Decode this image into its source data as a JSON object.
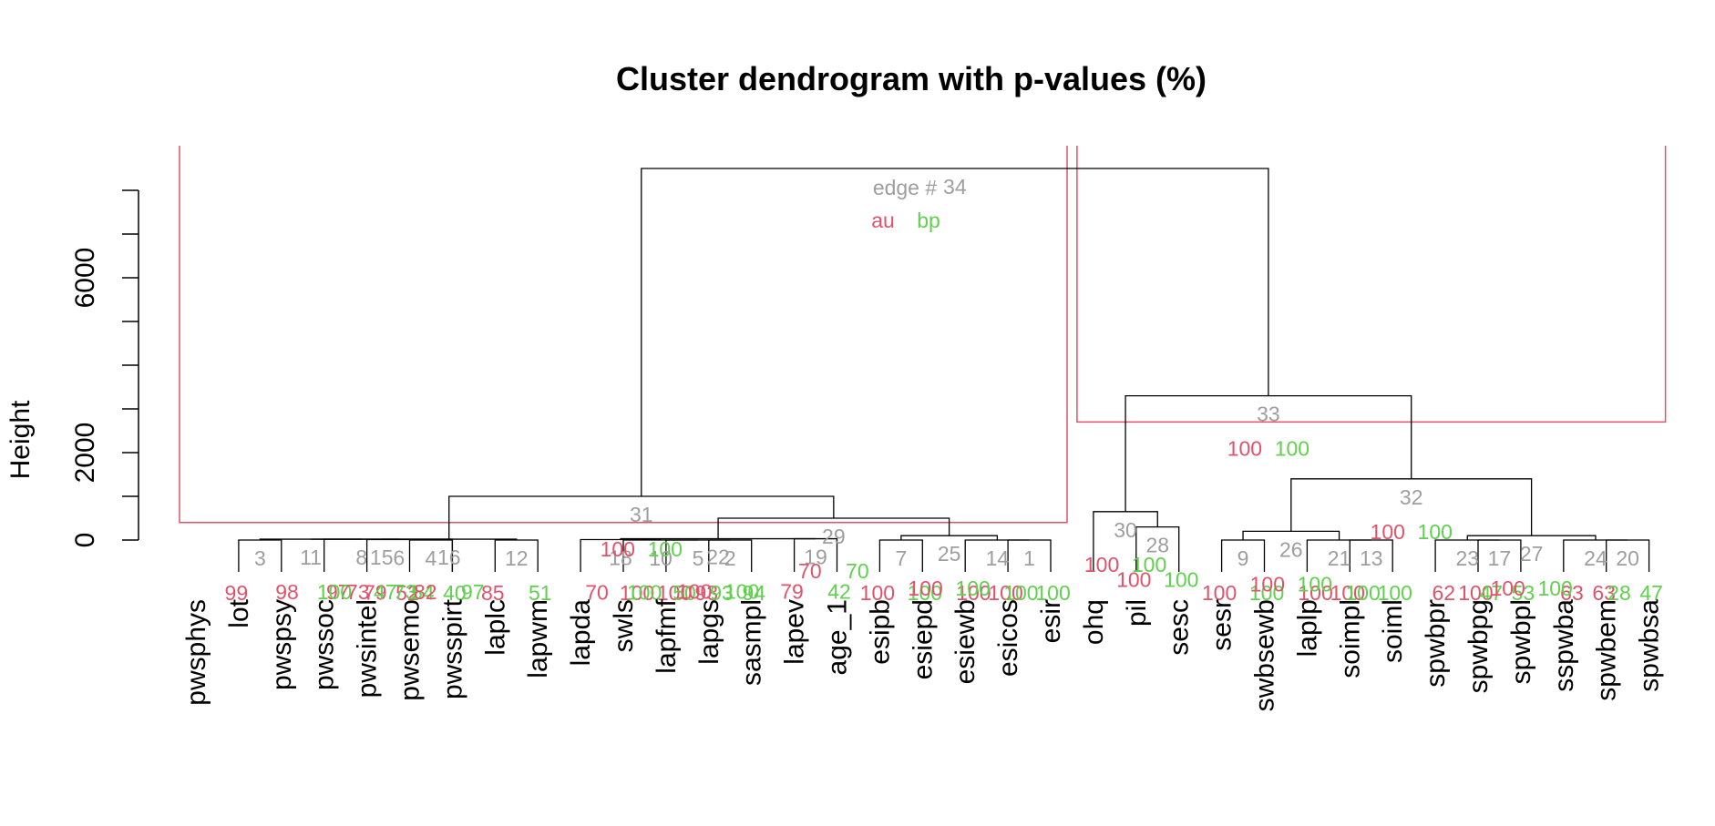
{
  "colors": {
    "branch": "#000000",
    "rect": "#df536b",
    "edge": "#9e9e9e",
    "au": "#df536b",
    "bp": "#61d04f"
  },
  "chart_data": {
    "type": "dendrogram",
    "title": "Cluster dendrogram with p-values (%)",
    "ylabel": "Height",
    "ylim": [
      0,
      8500
    ],
    "yticks": [
      0,
      1000,
      2000,
      3000,
      4000,
      5000,
      6000,
      7000,
      8000
    ],
    "ytick_labels": [
      "0",
      "",
      "2000",
      "",
      "",
      "",
      "6000",
      "",
      ""
    ],
    "legend": {
      "edge": "edge #",
      "au": "au",
      "bp": "bp",
      "position": "top-center"
    },
    "leaves": [
      "pwsphys",
      "lot",
      "pwspsy",
      "pwssoc",
      "pwsintel",
      "pwsemo",
      "pwsspirt",
      "laplc",
      "lapwm",
      "lapda",
      "swls",
      "lapfmf",
      "lapgs",
      "sasmpl",
      "lapev",
      "age_1",
      "esipb",
      "esiepd",
      "esiewb",
      "esicos",
      "esir",
      "ohq",
      "pil",
      "sesc",
      "sesr",
      "swbsewb",
      "laplp",
      "soimpl",
      "soiml",
      "spwbpr",
      "spwbpg",
      "spwbpl",
      "sspwba",
      "spwbem",
      "spwbsa"
    ],
    "merges": [
      {
        "edge": 1,
        "a": "L19",
        "b": "L20",
        "h": 0,
        "au": "100",
        "bp": "100"
      },
      {
        "edge": 2,
        "a": "L12",
        "b": "L13",
        "h": 0,
        "au": "93",
        "bp": "94"
      },
      {
        "edge": 3,
        "a": "L1",
        "b": "L2",
        "h": 0,
        "au": "99",
        "bp": ""
      },
      {
        "edge": 4,
        "a": "L5",
        "b": "L6",
        "h": 0,
        "au": "52",
        "bp": "40"
      },
      {
        "edge": 5,
        "a": "L11",
        "b": "E2",
        "h": 0,
        "au": "100",
        "bp": "93"
      },
      {
        "edge": 6,
        "a": "L4",
        "b": "E4",
        "h": 10,
        "au": "79",
        "bp": "54"
      },
      {
        "edge": 7,
        "a": "L16",
        "b": "L17",
        "h": 0,
        "au": "100",
        "bp": "100"
      },
      {
        "edge": 8,
        "a": "L3",
        "b": "E6",
        "h": 20,
        "au": "97",
        "bp": "47"
      },
      {
        "edge": 9,
        "a": "L24",
        "b": "L25",
        "h": 0,
        "au": "100",
        "bp": "100"
      },
      {
        "edge": 10,
        "a": "L10",
        "b": "E5",
        "h": 0,
        "au": "100",
        "bp": "50"
      },
      {
        "edge": 11,
        "a": "E3",
        "b": "E8",
        "h": 20,
        "au": "98",
        "bp": "100"
      },
      {
        "edge": 12,
        "a": "L7",
        "b": "L8",
        "h": 0,
        "au": "85",
        "bp": "51"
      },
      {
        "edge": 13,
        "a": "L27",
        "b": "L28",
        "h": 0,
        "au": "100",
        "bp": "100"
      },
      {
        "edge": 14,
        "a": "L18",
        "b": "E1",
        "h": 0,
        "au": "100",
        "bp": "100"
      },
      {
        "edge": 15,
        "a": "E11",
        "b": "L6",
        "h": 20,
        "au": "73",
        "bp": "73"
      },
      {
        "edge": 16,
        "a": "E15",
        "b": "E12",
        "h": 20,
        "au": "82",
        "bp": "97"
      },
      {
        "edge": 17,
        "a": "L30",
        "b": "L31",
        "h": 0,
        "au": "100",
        "bp": "53"
      },
      {
        "edge": 18,
        "a": "L9",
        "b": "E10",
        "h": 10,
        "au": "70",
        "bp": "100"
      },
      {
        "edge": 19,
        "a": "L14",
        "b": "L15",
        "h": 30,
        "au": "79",
        "bp": "42"
      },
      {
        "edge": 20,
        "a": "L33",
        "b": "L34",
        "h": 0,
        "au": "63",
        "bp": "47"
      },
      {
        "edge": 21,
        "a": "L26",
        "b": "E13",
        "h": 0,
        "au": "100",
        "bp": "100"
      },
      {
        "edge": 22,
        "a": "E18",
        "b": "E19",
        "h": 30,
        "au": "100",
        "bp": "100"
      },
      {
        "edge": 23,
        "a": "L29",
        "b": "E17",
        "h": 0,
        "au": "62",
        "bp": "47"
      },
      {
        "edge": 24,
        "a": "L32",
        "b": "E20",
        "h": 0,
        "au": "63",
        "bp": "28"
      },
      {
        "edge": 25,
        "a": "E7",
        "b": "E14",
        "h": 100,
        "au": "100",
        "bp": "100"
      },
      {
        "edge": 26,
        "a": "E9",
        "b": "E21",
        "h": 200,
        "au": "100",
        "bp": "100"
      },
      {
        "edge": 27,
        "a": "E23",
        "b": "E24",
        "h": 100,
        "au": "100",
        "bp": "100"
      },
      {
        "edge": 28,
        "a": "L22",
        "b": "L23",
        "h": 300,
        "au": "100",
        "bp": "100"
      },
      {
        "edge": 29,
        "a": "E22",
        "b": "E25",
        "h": 500,
        "au": "70",
        "bp": "70"
      },
      {
        "edge": 30,
        "a": "L21",
        "b": "E28",
        "h": 650,
        "au": "100",
        "bp": "100"
      },
      {
        "edge": 31,
        "a": "E16",
        "b": "E29",
        "h": 1000,
        "au": "100",
        "bp": "100"
      },
      {
        "edge": 32,
        "a": "E26",
        "b": "E27",
        "h": 1400,
        "au": "100",
        "bp": "100"
      },
      {
        "edge": 33,
        "a": "E30",
        "b": "E32",
        "h": 3300,
        "au": "100",
        "bp": "100"
      },
      {
        "edge": 34,
        "a": "E31",
        "b": "E33",
        "h": 8500,
        "au": "",
        "bp": ""
      }
    ],
    "highlight_rects": [
      {
        "leaf_from": 0,
        "leaf_to": 20,
        "height": 400
      },
      {
        "leaf_from": 21,
        "leaf_to": 34,
        "height": 2700
      }
    ]
  }
}
